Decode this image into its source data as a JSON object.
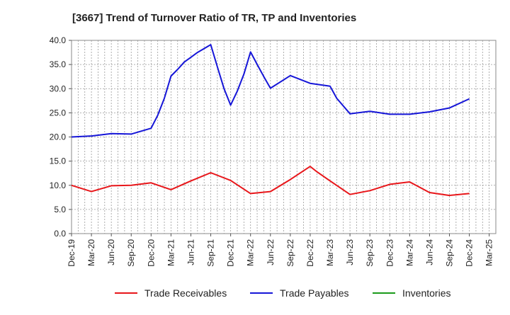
{
  "chart_data": {
    "type": "line",
    "title": "[3667]  Trend of Turnover Ratio of TR, TP and Inventories",
    "xlabel": "",
    "ylabel": "",
    "ylim": [
      0,
      40
    ],
    "yticks": [
      "0.0",
      "5.0",
      "10.0",
      "15.0",
      "20.0",
      "25.0",
      "30.0",
      "35.0",
      "40.0"
    ],
    "xticks": [
      "Dec-19",
      "Mar-20",
      "Jun-20",
      "Sep-20",
      "Dec-20",
      "Mar-21",
      "Jun-21",
      "Sep-21",
      "Dec-21",
      "Mar-22",
      "Jun-22",
      "Sep-22",
      "Dec-22",
      "Mar-23",
      "Jun-23",
      "Sep-23",
      "Dec-23",
      "Mar-24",
      "Jun-24",
      "Sep-24",
      "Dec-24",
      "Mar-25"
    ],
    "x_count": 64,
    "grid": true,
    "legend_position": "bottom",
    "series": [
      {
        "name": "Trade Receivables",
        "color": "#e8161a",
        "points": [
          [
            0,
            10.0
          ],
          [
            3,
            8.7
          ],
          [
            6,
            9.9
          ],
          [
            9,
            10.0
          ],
          [
            12,
            10.5
          ],
          [
            15,
            9.1
          ],
          [
            18,
            10.9
          ],
          [
            21,
            12.6
          ],
          [
            24,
            11.0
          ],
          [
            27,
            8.3
          ],
          [
            30,
            8.7
          ],
          [
            33,
            11.2
          ],
          [
            36,
            13.9
          ],
          [
            37,
            12.8
          ],
          [
            39,
            10.9
          ],
          [
            42,
            8.1
          ],
          [
            45,
            8.9
          ],
          [
            48,
            10.2
          ],
          [
            51,
            10.7
          ],
          [
            54,
            8.5
          ],
          [
            57,
            7.9
          ],
          [
            60,
            8.3
          ]
        ]
      },
      {
        "name": "Trade Payables",
        "color": "#1616d8",
        "points": [
          [
            0,
            20.0
          ],
          [
            3,
            20.2
          ],
          [
            6,
            20.7
          ],
          [
            9,
            20.6
          ],
          [
            12,
            21.8
          ],
          [
            13,
            24.5
          ],
          [
            14,
            28.0
          ],
          [
            15,
            32.6
          ],
          [
            16,
            34.0
          ],
          [
            17,
            35.5
          ],
          [
            18,
            36.5
          ],
          [
            19,
            37.5
          ],
          [
            21,
            39.1
          ],
          [
            22,
            34.5
          ],
          [
            23,
            30.0
          ],
          [
            24,
            26.6
          ],
          [
            25,
            29.5
          ],
          [
            26,
            33.0
          ],
          [
            27,
            37.6
          ],
          [
            28,
            35.0
          ],
          [
            29,
            32.5
          ],
          [
            30,
            30.1
          ],
          [
            33,
            32.7
          ],
          [
            36,
            31.1
          ],
          [
            39,
            30.5
          ],
          [
            40,
            28.0
          ],
          [
            42,
            24.8
          ],
          [
            45,
            25.3
          ],
          [
            48,
            24.7
          ],
          [
            51,
            24.7
          ],
          [
            54,
            25.2
          ],
          [
            57,
            26.0
          ],
          [
            60,
            27.9
          ]
        ]
      },
      {
        "name": "Inventories",
        "color": "#1a9a1a",
        "points": []
      }
    ]
  }
}
